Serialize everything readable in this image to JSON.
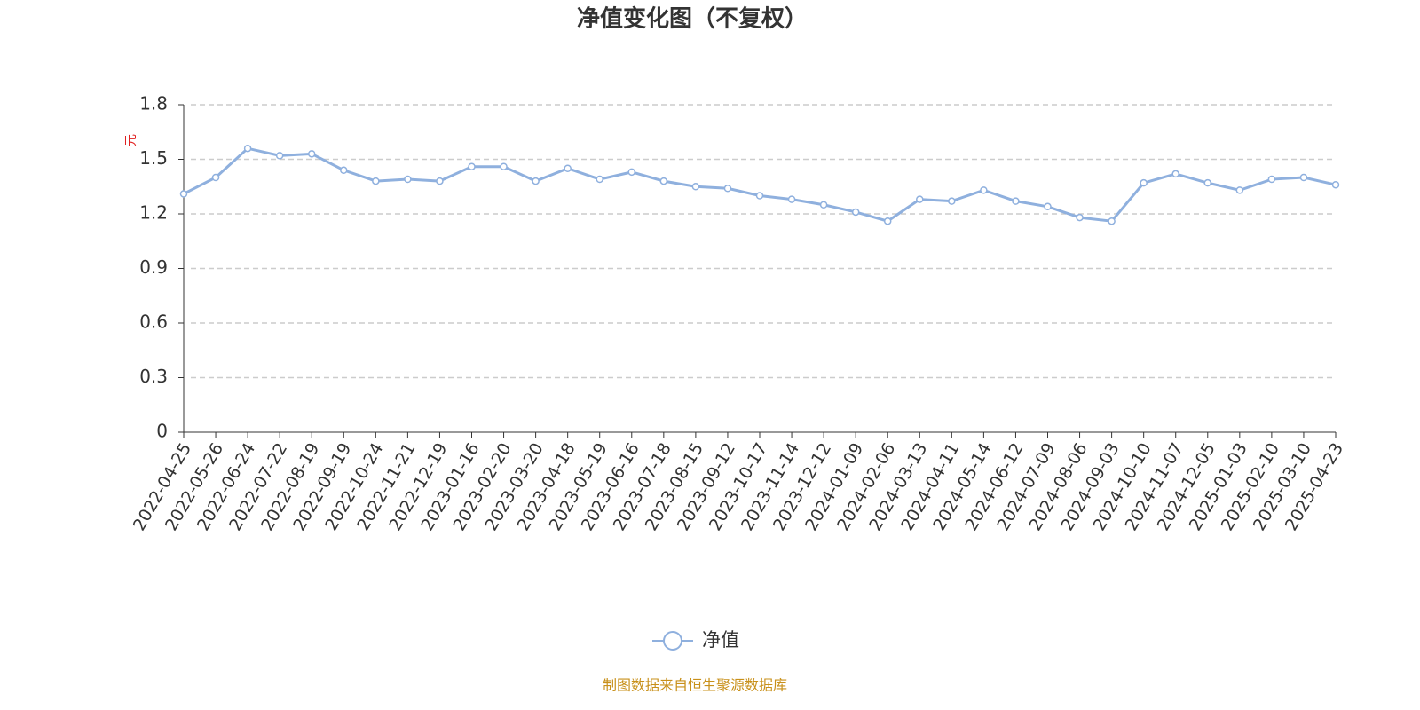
{
  "chart_data": {
    "type": "line",
    "title": "净值变化图（不复权）",
    "y_label": "元",
    "source": "制图数据来自恒生聚源数据库",
    "categories": [
      "2022-04-25",
      "2022-05-26",
      "2022-06-24",
      "2022-07-22",
      "2022-08-19",
      "2022-09-19",
      "2022-10-24",
      "2022-11-21",
      "2022-12-19",
      "2023-01-16",
      "2023-02-20",
      "2023-03-20",
      "2023-04-18",
      "2023-05-19",
      "2023-06-16",
      "2023-07-18",
      "2023-08-15",
      "2023-09-12",
      "2023-10-17",
      "2023-11-14",
      "2023-12-12",
      "2024-01-09",
      "2024-02-06",
      "2024-03-13",
      "2024-04-11",
      "2024-05-14",
      "2024-06-12",
      "2024-07-09",
      "2024-08-06",
      "2024-09-03",
      "2024-10-10",
      "2024-11-07",
      "2024-12-05",
      "2025-01-03",
      "2025-02-10",
      "2025-03-10",
      "2025-04-23"
    ],
    "series": [
      {
        "name": "净值",
        "color": "#8fb0de",
        "values": [
          1.31,
          1.4,
          1.56,
          1.52,
          1.53,
          1.44,
          1.38,
          1.39,
          1.38,
          1.46,
          1.46,
          1.38,
          1.45,
          1.39,
          1.43,
          1.38,
          1.35,
          1.34,
          1.3,
          1.28,
          1.25,
          1.21,
          1.16,
          1.28,
          1.27,
          1.33,
          1.27,
          1.24,
          1.18,
          1.16,
          1.37,
          1.42,
          1.37,
          1.33,
          1.39,
          1.4,
          1.36
        ]
      }
    ],
    "ylim": [
      0,
      1.8
    ],
    "yticks": [
      0,
      0.3,
      0.6,
      0.9,
      1.2,
      1.5,
      1.8
    ],
    "grid": true
  }
}
